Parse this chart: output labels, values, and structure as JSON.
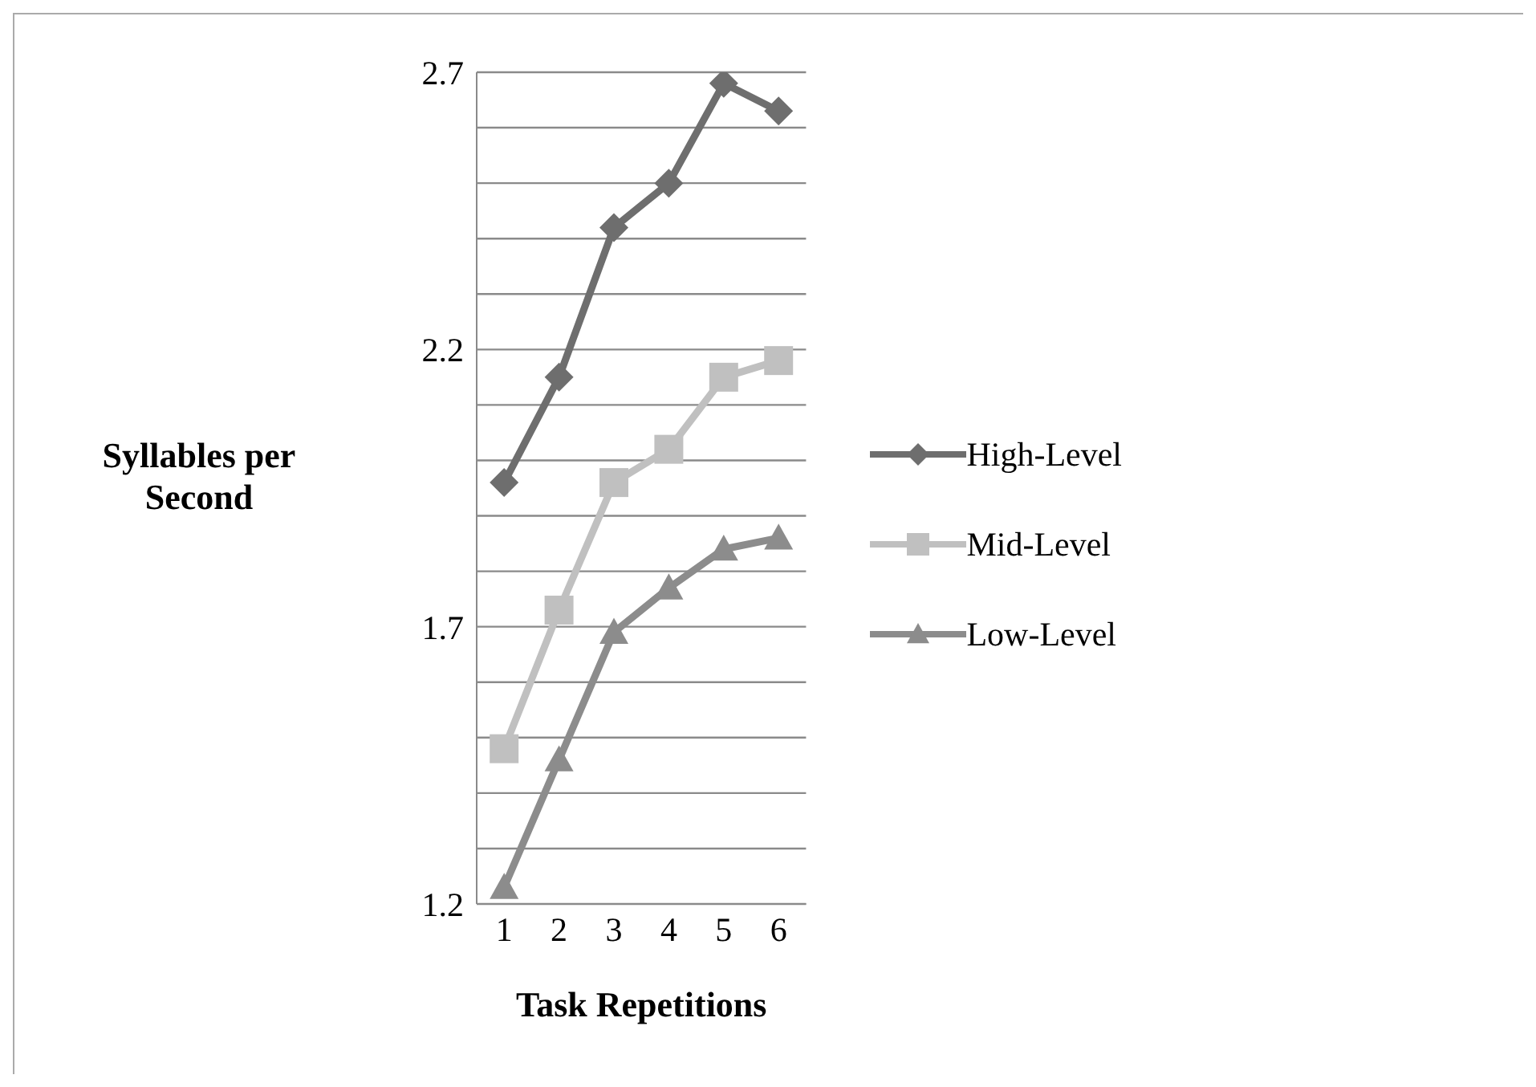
{
  "chart_data": {
    "type": "line",
    "xlabel": "Task Repetitions",
    "ylabel": "Syllables per Second",
    "categories": [
      "1",
      "2",
      "3",
      "4",
      "5",
      "6"
    ],
    "series": [
      {
        "name": "High-Level",
        "color": "#6e6e6e",
        "marker": "diamond",
        "values": [
          1.96,
          2.15,
          2.42,
          2.5,
          2.68,
          2.63
        ]
      },
      {
        "name": "Mid-Level",
        "color": "#c0c0c0",
        "marker": "square",
        "values": [
          1.48,
          1.73,
          1.96,
          2.02,
          2.15,
          2.18
        ]
      },
      {
        "name": "Low-Level",
        "color": "#8c8c8c",
        "marker": "triangle",
        "values": [
          1.23,
          1.46,
          1.69,
          1.77,
          1.84,
          1.86
        ]
      }
    ],
    "ylim": [
      1.2,
      2.7
    ],
    "yticks": [
      1.2,
      {
        "value": 1.3,
        "label": null
      },
      {
        "value": 1.4,
        "label": null
      },
      {
        "value": 1.5,
        "label": null
      },
      {
        "value": 1.6,
        "label": null
      },
      1.7,
      {
        "value": 1.8,
        "label": null
      },
      {
        "value": 1.9,
        "label": null
      },
      {
        "value": 2.0,
        "label": null
      },
      {
        "value": 2.1,
        "label": null
      },
      2.2,
      {
        "value": 2.3,
        "label": null
      },
      {
        "value": 2.4,
        "label": null
      },
      {
        "value": 2.5,
        "label": null
      },
      {
        "value": 2.6,
        "label": null
      },
      2.7
    ],
    "grid": "y",
    "legend": "right",
    "line_style": "solid"
  }
}
